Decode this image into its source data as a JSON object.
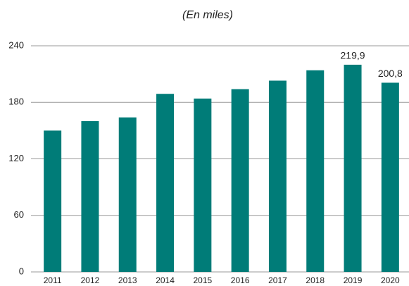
{
  "chart_data": {
    "type": "bar",
    "subtitle": "(En miles)",
    "categories": [
      "2011",
      "2012",
      "2013",
      "2014",
      "2015",
      "2016",
      "2017",
      "2018",
      "2019",
      "2020"
    ],
    "values": [
      150,
      160,
      164,
      189,
      184,
      194,
      203,
      214,
      219.9,
      200.8
    ],
    "value_labels": [
      null,
      null,
      null,
      null,
      null,
      null,
      null,
      null,
      "219,9",
      "200,8"
    ],
    "color": "#007c78",
    "ylim": [
      0,
      240
    ],
    "yticks": [
      0,
      60,
      120,
      180,
      240
    ],
    "grid": true
  }
}
